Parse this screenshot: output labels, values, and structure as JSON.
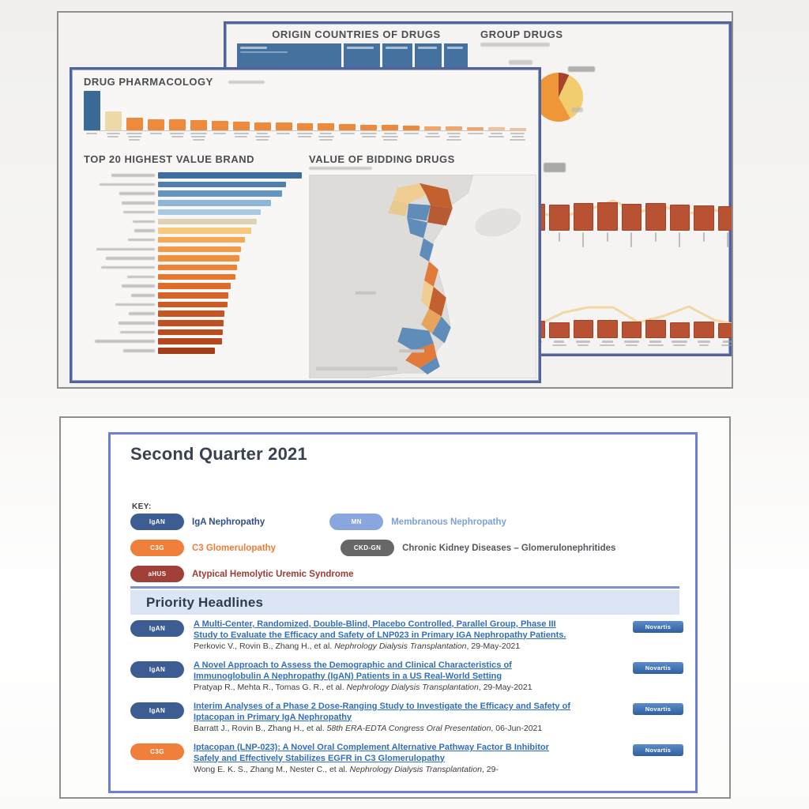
{
  "top_panel": {
    "back_dashboard": {
      "title_left": "ORIGIN COUNTRIES OF DRUGS",
      "title_right": "GROUP DRUGS",
      "treemap_cells": [
        132,
        46,
        38,
        34,
        30
      ],
      "pie": {
        "slices": [
          {
            "color": "#a8432a",
            "value": 7
          },
          {
            "color": "#f2cd6f",
            "value": 35
          },
          {
            "color": "#ee9638",
            "value": 58
          }
        ]
      },
      "bar_row_1": {
        "bar_color": "#b95233",
        "line_color": "#f4d4a0",
        "values": [
          33,
          34,
          33,
          35,
          36,
          34,
          35,
          33,
          32,
          31
        ],
        "line": [
          28,
          25,
          29,
          21,
          9,
          23,
          17,
          25,
          21,
          27
        ]
      },
      "bar_row_2": {
        "bar_color": "#b95233",
        "line_color": "#f4d4a0",
        "values": [
          20,
          22,
          20,
          23,
          23,
          21,
          23,
          20,
          21,
          19
        ],
        "line": [
          21,
          25,
          9,
          2,
          2,
          21,
          13,
          1,
          18,
          25
        ]
      }
    },
    "front_dashboard": {
      "pharmacology": {
        "title": "DRUG PHARMACOLOGY",
        "values": [
          50,
          24,
          16,
          14,
          14,
          13,
          12,
          11,
          10,
          10,
          9,
          9,
          8,
          7,
          7,
          6,
          5,
          5,
          4,
          4,
          3
        ],
        "first_bar_color": "#3a6b96",
        "second_bar_color": "#eed9a8",
        "bar_color": "#ee8a3b"
      },
      "top20": {
        "title": "TOP 20 HIGHEST VALUE BRAND",
        "values": [
          182,
          162,
          157,
          143,
          130,
          125,
          118,
          110,
          105,
          103,
          100,
          98,
          92,
          89,
          88,
          84,
          83,
          82,
          81,
          72
        ],
        "colors": [
          "#3f6e9e",
          "#4f7fae",
          "#6394c2",
          "#8db7d9",
          "#a7c9e3",
          "#ddd3b4",
          "#f6c97e",
          "#f4a952",
          "#f29a45",
          "#f0903d",
          "#ec8435",
          "#e67930",
          "#de6c2b",
          "#d66328",
          "#cc5a25",
          "#c65523",
          "#c05021",
          "#ba4c20",
          "#b4481e",
          "#a33c1a"
        ],
        "label_widths": [
          55,
          70,
          45,
          42,
          40,
          28,
          26,
          34,
          74,
          62,
          68,
          35,
          42,
          30,
          50,
          33,
          46,
          44,
          76,
          40
        ]
      },
      "map": {
        "title": "VALUE OF BIDDING DRUGS"
      }
    }
  },
  "newsletter": {
    "title": "Second Quarter 2021",
    "key_label": "KEY:",
    "section_title": "Priority Headlines",
    "accent_border_color": "#6b7ed9",
    "band_color": "#dbe5f4",
    "link_color": "#2f6fc1",
    "key_rows": [
      [
        {
          "abbr": "IgAN",
          "label": "IgA Nephropathy",
          "pill_color": "#3d5d92",
          "text_color": "#2e4f86"
        },
        {
          "abbr": "MN",
          "label": "Membranous Nephropathy",
          "pill_color": "#8aa6de",
          "text_color": "#7da0dd"
        }
      ],
      [
        {
          "abbr": "C3G",
          "label": "C3 Glomerulopathy",
          "pill_color": "#f07f3c",
          "text_color": "#ef7d35"
        },
        {
          "abbr": "CKD-GN",
          "label": "Chronic Kidney Diseases – Glomerulonephritides",
          "pill_color": "#676767",
          "text_color": "#55595e"
        }
      ],
      [
        {
          "abbr": "aHUS",
          "label": "Atypical Hemolytic Uremic Syndrome",
          "pill_color": "#a04038",
          "text_color": "#9e3b35"
        }
      ]
    ],
    "articles": [
      {
        "tag": "IgAN",
        "tag_color": "#3d5d92",
        "title": "A Multi-Center, Randomized, Double-Blind, Placebo Controlled, Parallel Group, Phase III Study to Evaluate the Efficacy and Safety of LNP023 in Primary IGA Nephropathy Patients.",
        "authors": "Perkovic V., Rovin B., Zhang H., et al.",
        "journal": "Nephrology Dialysis Transplantation",
        "date_tail": ", 29-May-2021",
        "org": "Novartis"
      },
      {
        "tag": "IgAN",
        "tag_color": "#3d5d92",
        "title": "A Novel Approach to Assess the Demographic and Clinical Characteristics of Immunoglobulin A Nephropathy (IgAN) Patients in a US Real-World Setting",
        "authors": "Pratyap R., Mehta R., Tomas G. R., et al.",
        "journal": "Nephrology Dialysis Transplantation",
        "date_tail": ", 29-May-2021",
        "org": "Novartis"
      },
      {
        "tag": "IgAN",
        "tag_color": "#3d5d92",
        "title": "Interim Analyses of a Phase 2 Dose-Ranging Study to Investigate the Efficacy and Safety of Iptacopan in Primary IgA Nephropathy",
        "authors": "Barratt J., Rovin B., Zhang H., et al.",
        "journal": "58th ERA-EDTA Congress Oral Presentation",
        "date_tail": ", 06-Jun-2021",
        "org": "Novartis"
      },
      {
        "tag": "C3G",
        "tag_color": "#f07f3c",
        "title": "Iptacopan (LNP-023): A Novel Oral Complement Alternative Pathway Factor B Inhibitor Safely and Effectively Stabilizes EGFR in C3 Glomerulopathy",
        "authors": "Wong E. K. S., Zhang M., Nester C., et al.",
        "journal": "Nephrology Dialysis Transplantation",
        "date_tail": ", 29-",
        "org": "Novartis"
      }
    ]
  }
}
